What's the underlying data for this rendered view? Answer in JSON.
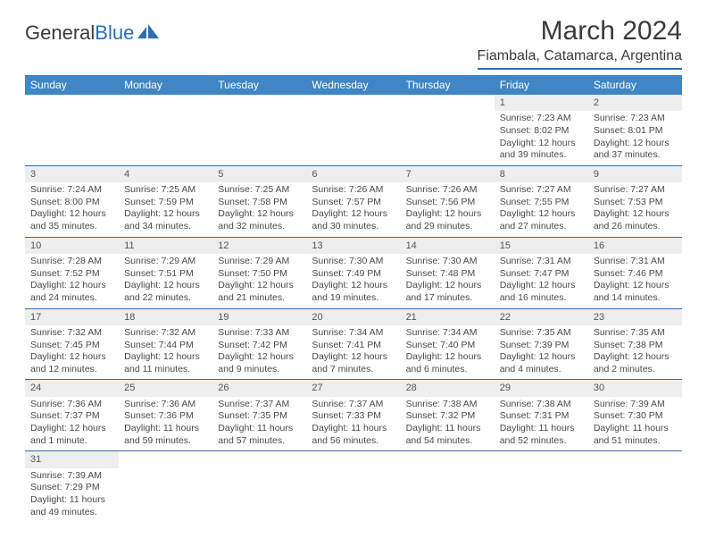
{
  "brand": {
    "part1": "General",
    "part2": "Blue"
  },
  "title": "March 2024",
  "location": "Fiambala, Catamarca, Argentina",
  "colors": {
    "header_bg": "#3e86c4",
    "header_text": "#ffffff",
    "accent_line": "#2c6fb0",
    "daynum_bg": "#eeeeee",
    "body_text": "#4a4a4a"
  },
  "weekdays": [
    "Sunday",
    "Monday",
    "Tuesday",
    "Wednesday",
    "Thursday",
    "Friday",
    "Saturday"
  ],
  "weeks": [
    [
      null,
      null,
      null,
      null,
      null,
      {
        "n": "1",
        "sr": "7:23 AM",
        "ss": "8:02 PM",
        "dl": "12 hours and 39 minutes."
      },
      {
        "n": "2",
        "sr": "7:23 AM",
        "ss": "8:01 PM",
        "dl": "12 hours and 37 minutes."
      }
    ],
    [
      {
        "n": "3",
        "sr": "7:24 AM",
        "ss": "8:00 PM",
        "dl": "12 hours and 35 minutes."
      },
      {
        "n": "4",
        "sr": "7:25 AM",
        "ss": "7:59 PM",
        "dl": "12 hours and 34 minutes."
      },
      {
        "n": "5",
        "sr": "7:25 AM",
        "ss": "7:58 PM",
        "dl": "12 hours and 32 minutes."
      },
      {
        "n": "6",
        "sr": "7:26 AM",
        "ss": "7:57 PM",
        "dl": "12 hours and 30 minutes."
      },
      {
        "n": "7",
        "sr": "7:26 AM",
        "ss": "7:56 PM",
        "dl": "12 hours and 29 minutes."
      },
      {
        "n": "8",
        "sr": "7:27 AM",
        "ss": "7:55 PM",
        "dl": "12 hours and 27 minutes."
      },
      {
        "n": "9",
        "sr": "7:27 AM",
        "ss": "7:53 PM",
        "dl": "12 hours and 26 minutes."
      }
    ],
    [
      {
        "n": "10",
        "sr": "7:28 AM",
        "ss": "7:52 PM",
        "dl": "12 hours and 24 minutes."
      },
      {
        "n": "11",
        "sr": "7:29 AM",
        "ss": "7:51 PM",
        "dl": "12 hours and 22 minutes."
      },
      {
        "n": "12",
        "sr": "7:29 AM",
        "ss": "7:50 PM",
        "dl": "12 hours and 21 minutes."
      },
      {
        "n": "13",
        "sr": "7:30 AM",
        "ss": "7:49 PM",
        "dl": "12 hours and 19 minutes."
      },
      {
        "n": "14",
        "sr": "7:30 AM",
        "ss": "7:48 PM",
        "dl": "12 hours and 17 minutes."
      },
      {
        "n": "15",
        "sr": "7:31 AM",
        "ss": "7:47 PM",
        "dl": "12 hours and 16 minutes."
      },
      {
        "n": "16",
        "sr": "7:31 AM",
        "ss": "7:46 PM",
        "dl": "12 hours and 14 minutes."
      }
    ],
    [
      {
        "n": "17",
        "sr": "7:32 AM",
        "ss": "7:45 PM",
        "dl": "12 hours and 12 minutes."
      },
      {
        "n": "18",
        "sr": "7:32 AM",
        "ss": "7:44 PM",
        "dl": "12 hours and 11 minutes."
      },
      {
        "n": "19",
        "sr": "7:33 AM",
        "ss": "7:42 PM",
        "dl": "12 hours and 9 minutes."
      },
      {
        "n": "20",
        "sr": "7:34 AM",
        "ss": "7:41 PM",
        "dl": "12 hours and 7 minutes."
      },
      {
        "n": "21",
        "sr": "7:34 AM",
        "ss": "7:40 PM",
        "dl": "12 hours and 6 minutes."
      },
      {
        "n": "22",
        "sr": "7:35 AM",
        "ss": "7:39 PM",
        "dl": "12 hours and 4 minutes."
      },
      {
        "n": "23",
        "sr": "7:35 AM",
        "ss": "7:38 PM",
        "dl": "12 hours and 2 minutes."
      }
    ],
    [
      {
        "n": "24",
        "sr": "7:36 AM",
        "ss": "7:37 PM",
        "dl": "12 hours and 1 minute."
      },
      {
        "n": "25",
        "sr": "7:36 AM",
        "ss": "7:36 PM",
        "dl": "11 hours and 59 minutes."
      },
      {
        "n": "26",
        "sr": "7:37 AM",
        "ss": "7:35 PM",
        "dl": "11 hours and 57 minutes."
      },
      {
        "n": "27",
        "sr": "7:37 AM",
        "ss": "7:33 PM",
        "dl": "11 hours and 56 minutes."
      },
      {
        "n": "28",
        "sr": "7:38 AM",
        "ss": "7:32 PM",
        "dl": "11 hours and 54 minutes."
      },
      {
        "n": "29",
        "sr": "7:38 AM",
        "ss": "7:31 PM",
        "dl": "11 hours and 52 minutes."
      },
      {
        "n": "30",
        "sr": "7:39 AM",
        "ss": "7:30 PM",
        "dl": "11 hours and 51 minutes."
      }
    ],
    [
      {
        "n": "31",
        "sr": "7:39 AM",
        "ss": "7:29 PM",
        "dl": "11 hours and 49 minutes."
      },
      null,
      null,
      null,
      null,
      null,
      null
    ]
  ],
  "labels": {
    "sunrise": "Sunrise:",
    "sunset": "Sunset:",
    "daylight": "Daylight:"
  }
}
